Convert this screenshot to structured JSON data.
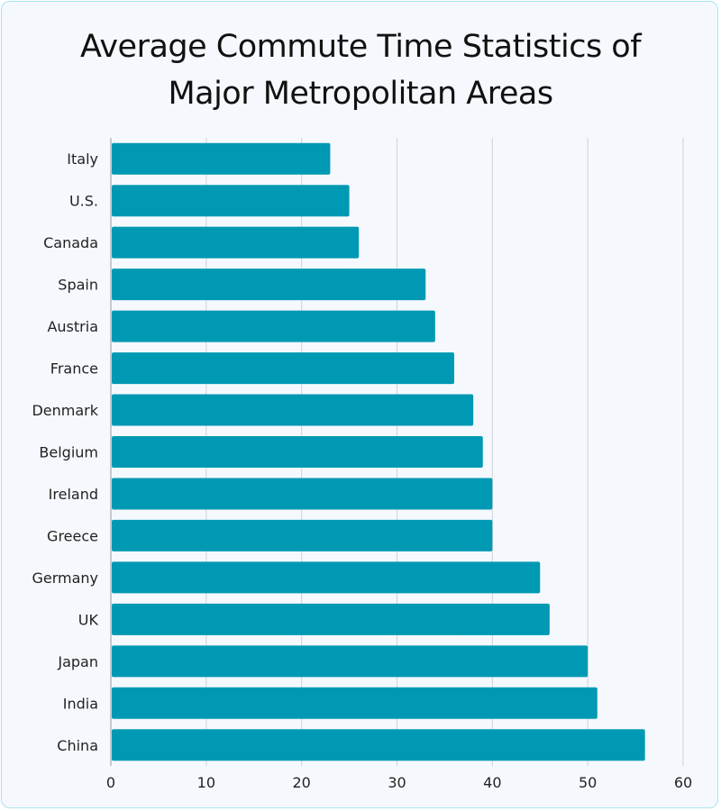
{
  "chart_data": {
    "type": "bar",
    "orientation": "horizontal",
    "title_lines": [
      "Average Commute Time Statistics of",
      "Major Metropolitan Areas"
    ],
    "categories": [
      "Italy",
      "U.S.",
      "Canada",
      "Spain",
      "Austria",
      "France",
      "Denmark",
      "Belgium",
      "Ireland",
      "Greece",
      "Germany",
      "UK",
      "Japan",
      "India",
      "China"
    ],
    "values": [
      23,
      25,
      26,
      33,
      34,
      36,
      38,
      39,
      40,
      40,
      45,
      46,
      50,
      51,
      56
    ],
    "xlim": [
      0,
      60
    ],
    "xticks": [
      0,
      10,
      20,
      30,
      40,
      50,
      60
    ],
    "xlabel": "",
    "ylabel": "",
    "grid": true,
    "bar_color": "#0099b4"
  }
}
